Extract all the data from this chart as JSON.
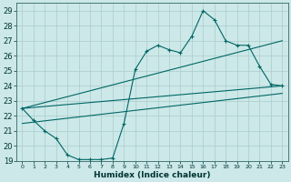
{
  "xlabel": "Humidex (Indice chaleur)",
  "bg_color": "#cce8e8",
  "grid_color": "#aacccc",
  "line_color": "#006666",
  "xlim": [
    -0.5,
    23.5
  ],
  "ylim": [
    19,
    29.5
  ],
  "xticks": [
    0,
    1,
    2,
    3,
    4,
    5,
    6,
    7,
    8,
    9,
    10,
    11,
    12,
    13,
    14,
    15,
    16,
    17,
    18,
    19,
    20,
    21,
    22,
    23
  ],
  "yticks": [
    19,
    20,
    21,
    22,
    23,
    24,
    25,
    26,
    27,
    28,
    29
  ],
  "series1_x": [
    0,
    1,
    2,
    3,
    4,
    5,
    6,
    7,
    8,
    9,
    10,
    11,
    12,
    13,
    14,
    15,
    16,
    17,
    18,
    19,
    20,
    21,
    22,
    23
  ],
  "series1_y": [
    22.5,
    21.7,
    21.0,
    20.5,
    19.4,
    19.1,
    19.1,
    19.1,
    19.2,
    21.5,
    25.1,
    26.3,
    26.7,
    26.4,
    26.2,
    27.3,
    29.0,
    28.4,
    27.0,
    26.7,
    26.7,
    25.3,
    24.1,
    24.0
  ],
  "series2_x": [
    0,
    23
  ],
  "series2_y": [
    22.5,
    27.0
  ],
  "series3_x": [
    0,
    23
  ],
  "series3_y": [
    22.5,
    24.0
  ],
  "series4_x": [
    0,
    23
  ],
  "series4_y": [
    21.5,
    23.5
  ]
}
